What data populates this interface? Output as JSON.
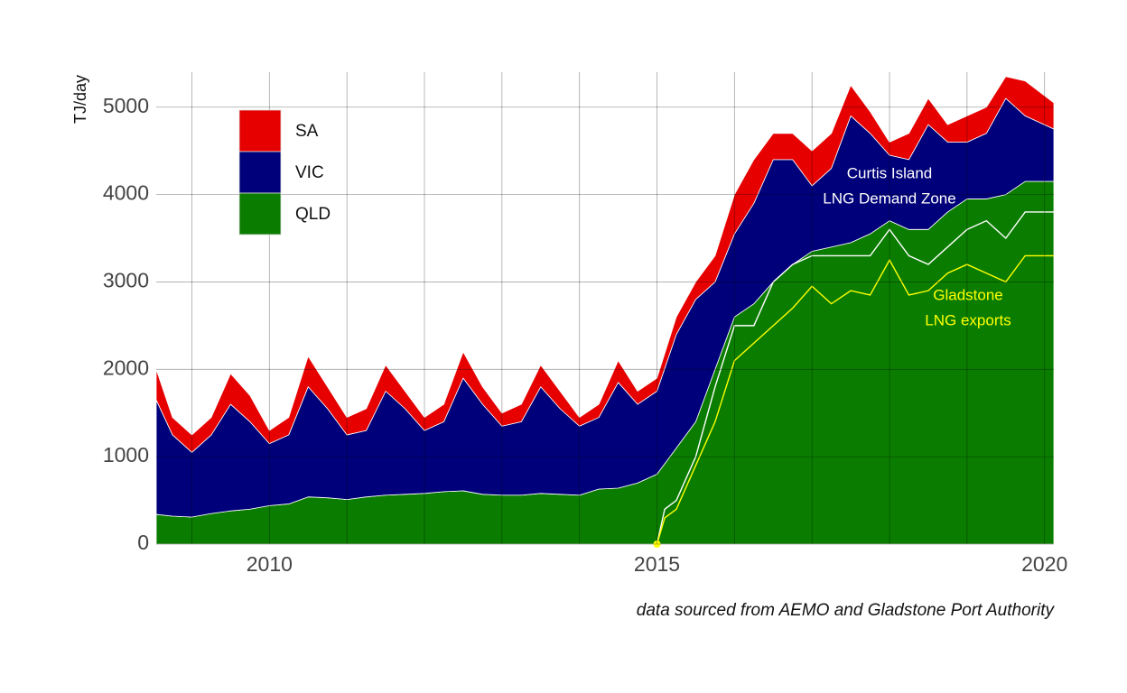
{
  "chart_data": {
    "type": "stacked-area",
    "y_label": "TJ/day",
    "source": "data sourced from AEMO and Gladstone Port Authority",
    "xlim": [
      2008.54,
      2020.12
    ],
    "xticks": [
      2010,
      2015,
      2020
    ],
    "xminorticks": [
      2009,
      2010,
      2011,
      2012,
      2013,
      2014,
      2015,
      2016,
      2017,
      2018,
      2019,
      2020
    ],
    "ylim": [
      0,
      5400
    ],
    "yticks": [
      0,
      1000,
      2000,
      3000,
      4000,
      5000
    ],
    "grid": true,
    "legend": "top-left",
    "x": [
      2008.54,
      2008.75,
      2009.0,
      2009.25,
      2009.5,
      2009.75,
      2010.0,
      2010.25,
      2010.5,
      2010.75,
      2011.0,
      2011.25,
      2011.5,
      2011.75,
      2012.0,
      2012.25,
      2012.5,
      2012.75,
      2013.0,
      2013.25,
      2013.5,
      2013.75,
      2014.0,
      2014.25,
      2014.5,
      2014.75,
      2015.0,
      2015.25,
      2015.5,
      2015.75,
      2016.0,
      2016.25,
      2016.5,
      2016.75,
      2017.0,
      2017.25,
      2017.5,
      2017.75,
      2018.0,
      2018.25,
      2018.5,
      2018.75,
      2019.0,
      2019.25,
      2019.5,
      2019.75,
      2020.12
    ],
    "series": [
      {
        "name": "QLD",
        "color": "#0a7d00",
        "values": [
          340,
          320,
          310,
          350,
          380,
          400,
          440,
          460,
          540,
          530,
          510,
          540,
          560,
          570,
          580,
          600,
          610,
          570,
          560,
          560,
          580,
          570,
          560,
          630,
          640,
          700,
          800,
          1100,
          1400,
          2000,
          2600,
          2750,
          3000,
          3200,
          3350,
          3400,
          3450,
          3550,
          3700,
          3600,
          3600,
          3800,
          3950,
          3950,
          4000,
          4150,
          4150
        ]
      },
      {
        "name": "VIC",
        "color": "#00007a",
        "values": [
          1310,
          930,
          740,
          900,
          1220,
          1000,
          710,
          790,
          1260,
          1020,
          740,
          760,
          1190,
          980,
          720,
          800,
          1290,
          1030,
          790,
          840,
          1220,
          980,
          790,
          820,
          1210,
          900,
          950,
          1300,
          1400,
          1000,
          950,
          1150,
          1400,
          1200,
          750,
          900,
          1450,
          1150,
          750,
          800,
          1200,
          800,
          650,
          750,
          1100,
          750,
          600
        ]
      },
      {
        "name": "SA",
        "color": "#e60000",
        "values": [
          350,
          200,
          200,
          200,
          350,
          300,
          150,
          200,
          350,
          250,
          200,
          250,
          300,
          200,
          150,
          200,
          300,
          200,
          150,
          200,
          250,
          200,
          100,
          150,
          250,
          150,
          150,
          200,
          200,
          300,
          450,
          500,
          300,
          300,
          400,
          400,
          350,
          250,
          150,
          300,
          300,
          200,
          300,
          300,
          250,
          400,
          300
        ]
      }
    ],
    "lines": [
      {
        "color": "#ffffff",
        "x": [
          2015.0,
          2015.1,
          2015.25,
          2015.5,
          2015.75,
          2016.0,
          2016.25,
          2016.5,
          2016.75,
          2017.0,
          2017.25,
          2017.5,
          2017.75,
          2018.0,
          2018.25,
          2018.5,
          2018.75,
          2019.0,
          2019.25,
          2019.5,
          2019.75,
          2020.12
        ],
        "values": [
          0,
          400,
          500,
          1000,
          1800,
          2500,
          2500,
          3000,
          3200,
          3300,
          3300,
          3300,
          3300,
          3600,
          3300,
          3200,
          3400,
          3600,
          3700,
          3500,
          3800,
          3800
        ]
      },
      {
        "color": "#ffff00",
        "x": [
          2015.0,
          2015.1,
          2015.25,
          2015.5,
          2015.75,
          2016.0,
          2016.25,
          2016.5,
          2016.75,
          2017.0,
          2017.25,
          2017.5,
          2017.75,
          2018.0,
          2018.25,
          2018.5,
          2018.75,
          2019.0,
          2019.25,
          2019.5,
          2019.75,
          2020.12
        ],
        "values": [
          0,
          300,
          400,
          900,
          1400,
          2100,
          2300,
          2500,
          2700,
          2950,
          2750,
          2900,
          2850,
          3250,
          2850,
          2900,
          3100,
          3200,
          3100,
          3000,
          3300,
          3300
        ]
      }
    ],
    "annotations": [
      {
        "text": [
          "Curtis Island",
          "LNG Demand Zone"
        ],
        "color": "#ffffff"
      },
      {
        "text": [
          "Gladstone",
          "LNG exports"
        ],
        "color": "#ffff00"
      }
    ]
  }
}
